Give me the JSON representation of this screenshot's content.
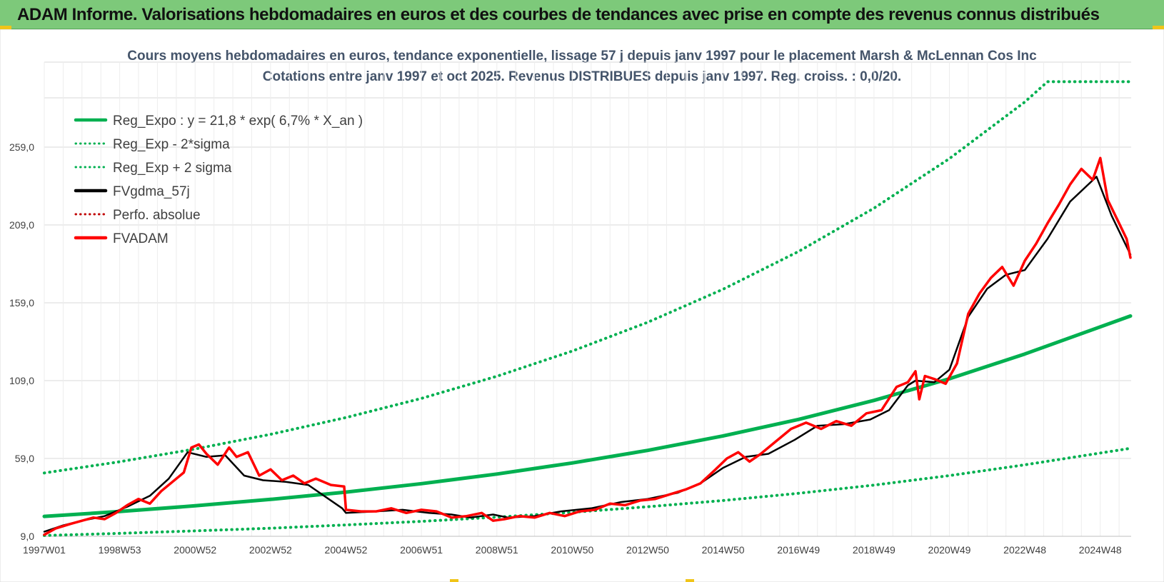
{
  "banner": {
    "title": "ADAM Informe. Valorisations hebdomadaires en euros et des courbes de tendances avec prise en compte des revenus connus distribués",
    "background": "#7dc97a"
  },
  "chart_data": {
    "type": "line",
    "title": "Cours moyens hebdomadaires en euros, tendance exponentielle, lissage 57 j depuis janv 1997 pour le placement Marsh & McLennan Cos Inc",
    "subtitle": "Cotations entre janv 1997 et oct 2025. Revenus DISTRIBUES depuis janv 1997. Reg. croiss. : 0,0/20.",
    "ylim": [
      9,
      301
    ],
    "yticks": [
      "9,0",
      "59,0",
      "109,0",
      "159,0",
      "209,0",
      "259,0"
    ],
    "ytick_values": [
      9,
      59,
      109,
      159,
      209,
      259
    ],
    "xlim": [
      1997.0,
      2025.8
    ],
    "xticks": [
      "1997W01",
      "1998W53",
      "2000W52",
      "2002W52",
      "2004W52",
      "2006W51",
      "2008W51",
      "2010W50",
      "2012W50",
      "2014W50",
      "2016W49",
      "2018W49",
      "2020W49",
      "2022W48",
      "2024W48"
    ],
    "xtick_values": [
      1997.0,
      1999.0,
      2001.0,
      2003.0,
      2005.0,
      2007.0,
      2009.0,
      2011.0,
      2013.0,
      2015.0,
      2017.0,
      2019.0,
      2021.0,
      2023.0,
      2025.0
    ],
    "grid": true,
    "legend_position": "top-left",
    "series": [
      {
        "name": "Reg_Expo : y = 21,8 * exp( 6,7% *  X_an )",
        "color": "#00b050",
        "style": "solid",
        "x": [
          1997,
          1999,
          2001,
          2003,
          2005,
          2007,
          2009,
          2011,
          2013,
          2015,
          2017,
          2019,
          2021,
          2023,
          2025.8
        ],
        "y": [
          21.8,
          24.9,
          28.6,
          32.7,
          37.4,
          42.8,
          49.0,
          56.1,
          64.2,
          73.5,
          84.1,
          96.3,
          110.2,
          126.1,
          150.5
        ]
      },
      {
        "name": "Reg_Exp - 2*sigma",
        "color": "#00b050",
        "style": "dotted",
        "x": [
          1997,
          1999,
          2001,
          2003,
          2005,
          2007,
          2009,
          2011,
          2013,
          2015,
          2017,
          2019,
          2021,
          2023,
          2025.8
        ],
        "y": [
          9.5,
          10.9,
          12.5,
          14.2,
          16.3,
          18.6,
          21.3,
          24.4,
          28.0,
          32.0,
          36.6,
          41.9,
          48.0,
          54.9,
          65.5
        ]
      },
      {
        "name": "Reg_Exp + 2 sigma",
        "color": "#00b050",
        "style": "dotted",
        "x": [
          1997,
          1999,
          2001,
          2003,
          2005,
          2007,
          2009,
          2011,
          2013,
          2015,
          2017,
          2019,
          2021,
          2023,
          2023.6,
          2025.8
        ],
        "y": [
          49.7,
          56.9,
          65.1,
          74.5,
          85.3,
          97.6,
          111.8,
          128.0,
          146.5,
          167.7,
          192.0,
          219.8,
          251.6,
          288.0,
          301.0,
          301.0
        ]
      },
      {
        "name": "FVgdma_57j",
        "color": "#000000",
        "style": "solid",
        "x": [
          1997.0,
          1997.5,
          1998.0,
          1998.6,
          1999.2,
          1999.8,
          2000.3,
          2000.8,
          2001.3,
          2001.8,
          2002.3,
          2002.8,
          2003.4,
          2004.0,
          2004.9,
          2005.0,
          2005.8,
          2006.5,
          2007.2,
          2007.8,
          2008.3,
          2008.9,
          2009.3,
          2010.0,
          2010.7,
          2011.5,
          2012.3,
          2013.0,
          2013.8,
          2014.4,
          2015.0,
          2015.6,
          2016.2,
          2016.9,
          2017.5,
          2018.2,
          2018.9,
          2019.4,
          2019.9,
          2020.1,
          2020.6,
          2021.0,
          2021.5,
          2022.0,
          2022.5,
          2023.0,
          2023.6,
          2024.2,
          2024.9,
          2025.3,
          2025.8
        ],
        "y": [
          12,
          16,
          19,
          22,
          28,
          35,
          46,
          63,
          60,
          61,
          48,
          45,
          44,
          42,
          27,
          24,
          25,
          26,
          24,
          23,
          21,
          23,
          21,
          22,
          25,
          27,
          31,
          33,
          37,
          43,
          53,
          60,
          62,
          71,
          80,
          81,
          84,
          90,
          106,
          109,
          108,
          116,
          150,
          168,
          177,
          180,
          200,
          224,
          240,
          215,
          190
        ]
      },
      {
        "name": "Perfo. absolue",
        "color": "#c00000",
        "style": "dotted",
        "x": [],
        "y": []
      },
      {
        "name": "FVADAM",
        "color": "#ff0000",
        "style": "solid",
        "x": [
          1997.0,
          1997.3,
          1997.7,
          1998.0,
          1998.3,
          1998.6,
          1998.9,
          1999.2,
          1999.5,
          1999.8,
          2000.1,
          2000.4,
          2000.7,
          2000.9,
          2001.1,
          2001.3,
          2001.6,
          2001.9,
          2002.1,
          2002.4,
          2002.7,
          2003.0,
          2003.3,
          2003.6,
          2003.9,
          2004.2,
          2004.6,
          2004.95,
          2005.0,
          2005.4,
          2005.8,
          2006.2,
          2006.6,
          2007.0,
          2007.4,
          2007.8,
          2008.2,
          2008.6,
          2008.9,
          2009.2,
          2009.6,
          2010.0,
          2010.4,
          2010.8,
          2011.2,
          2011.6,
          2012.0,
          2012.4,
          2012.8,
          2013.2,
          2013.6,
          2014.0,
          2014.4,
          2014.8,
          2015.1,
          2015.4,
          2015.7,
          2016.0,
          2016.4,
          2016.8,
          2017.2,
          2017.6,
          2018.0,
          2018.4,
          2018.8,
          2019.2,
          2019.6,
          2019.9,
          2020.1,
          2020.2,
          2020.35,
          2020.6,
          2020.9,
          2021.2,
          2021.5,
          2021.8,
          2022.1,
          2022.4,
          2022.7,
          2023.0,
          2023.3,
          2023.6,
          2023.9,
          2024.2,
          2024.5,
          2024.8,
          2025.0,
          2025.2,
          2025.5,
          2025.7,
          2025.8
        ],
        "y": [
          10,
          14,
          17,
          19,
          21,
          20,
          24,
          29,
          33,
          30,
          38,
          44,
          50,
          66,
          68,
          62,
          55,
          66,
          60,
          63,
          48,
          52,
          45,
          48,
          43,
          46,
          42,
          41,
          26,
          25,
          25,
          27,
          24,
          26,
          25,
          21,
          22,
          24,
          19,
          20,
          22,
          21,
          24,
          22,
          25,
          26,
          30,
          29,
          32,
          33,
          36,
          39,
          43,
          52,
          59,
          63,
          57,
          62,
          70,
          78,
          82,
          78,
          83,
          80,
          88,
          90,
          105,
          108,
          115,
          97,
          112,
          110,
          107,
          120,
          152,
          165,
          175,
          182,
          170,
          186,
          197,
          210,
          222,
          235,
          245,
          238,
          252,
          225,
          210,
          200,
          188
        ]
      }
    ]
  }
}
